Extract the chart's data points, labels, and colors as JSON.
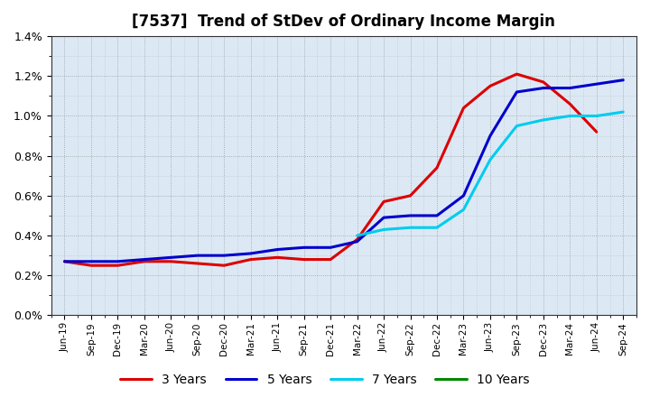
{
  "title": "[7537]  Trend of StDev of Ordinary Income Margin",
  "title_fontsize": 12,
  "background_color": "#ffffff",
  "plot_bg_color": "#dce9f5",
  "grid_color": "#888888",
  "ylim": [
    0.0,
    0.014
  ],
  "yticks": [
    0.0,
    0.002,
    0.004,
    0.006,
    0.008,
    0.01,
    0.012,
    0.014
  ],
  "x_labels": [
    "Jun-19",
    "Sep-19",
    "Dec-19",
    "Mar-20",
    "Jun-20",
    "Sep-20",
    "Dec-20",
    "Mar-21",
    "Jun-21",
    "Sep-21",
    "Dec-21",
    "Mar-22",
    "Jun-22",
    "Sep-22",
    "Dec-22",
    "Mar-23",
    "Jun-23",
    "Sep-23",
    "Dec-23",
    "Mar-24",
    "Jun-24",
    "Sep-24"
  ],
  "series": {
    "3 Years": {
      "color": "#dd0000",
      "linewidth": 2.2,
      "values": [
        0.0027,
        0.0025,
        0.0025,
        0.0027,
        0.0027,
        0.0026,
        0.0025,
        0.0028,
        0.0029,
        0.0028,
        0.0028,
        0.0038,
        0.0057,
        0.006,
        0.0074,
        0.0104,
        0.0115,
        0.0121,
        0.0117,
        0.0106,
        0.0092,
        null
      ]
    },
    "5 Years": {
      "color": "#0000cc",
      "linewidth": 2.2,
      "values": [
        0.0027,
        0.0027,
        0.0027,
        0.0028,
        0.0029,
        0.003,
        0.003,
        0.0031,
        0.0033,
        0.0034,
        0.0034,
        0.0037,
        0.0049,
        0.005,
        0.005,
        0.006,
        0.009,
        0.0112,
        0.0114,
        0.0114,
        0.0116,
        0.0118
      ]
    },
    "7 Years": {
      "color": "#00ccee",
      "linewidth": 2.2,
      "values": [
        null,
        null,
        null,
        null,
        null,
        null,
        null,
        null,
        null,
        null,
        null,
        0.004,
        0.0043,
        0.0044,
        0.0044,
        0.0053,
        0.0078,
        0.0095,
        0.0098,
        0.01,
        0.01,
        0.0102
      ]
    },
    "10 Years": {
      "color": "#008800",
      "linewidth": 2.2,
      "values": [
        null,
        null,
        null,
        null,
        null,
        null,
        null,
        null,
        null,
        null,
        null,
        null,
        null,
        null,
        null,
        null,
        null,
        null,
        null,
        null,
        null,
        null
      ]
    }
  },
  "legend_ncol": 4,
  "legend_fontsize": 10
}
